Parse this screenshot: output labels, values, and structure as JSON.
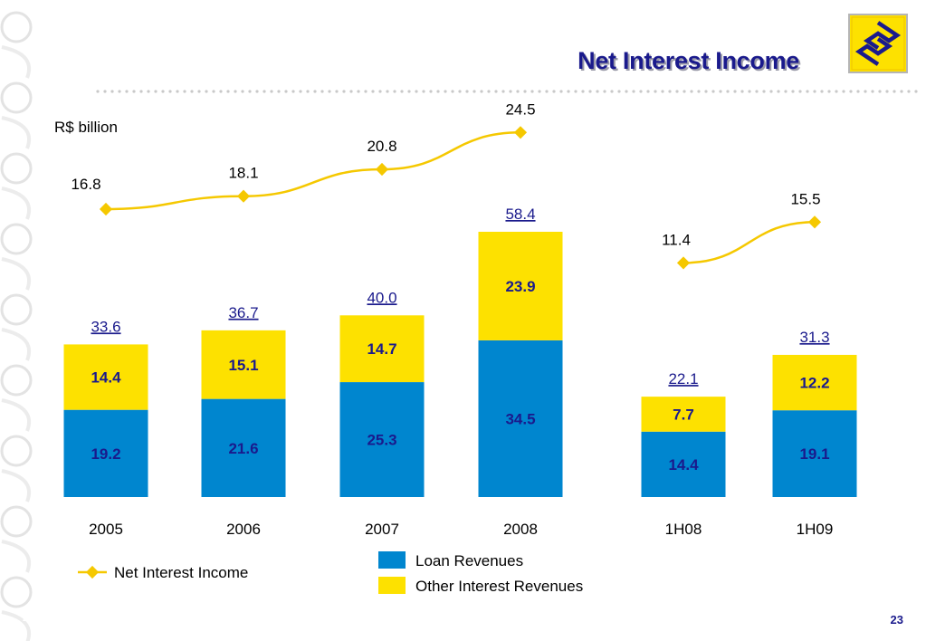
{
  "slide": {
    "title": "Net Interest Income",
    "unit_label": "R$ billion",
    "page_number": "23",
    "footer_number": "23"
  },
  "colors": {
    "loan": "#0086cf",
    "other": "#fde100",
    "line": "#f5c800",
    "title": "#1a1a8c"
  },
  "chart_data": {
    "type": "bar",
    "stacked": true,
    "categories": [
      "2005",
      "2006",
      "2007",
      "2008",
      "1H08",
      "1H09"
    ],
    "series": [
      {
        "name": "Loan Revenues",
        "values": [
          19.2,
          21.6,
          25.3,
          34.5,
          14.4,
          19.1
        ]
      },
      {
        "name": "Other Interest Revenues",
        "values": [
          14.4,
          15.1,
          14.7,
          23.9,
          7.7,
          12.2
        ]
      }
    ],
    "totals": [
      "33.6",
      "36.7",
      "40.0",
      "58.4",
      "22.1",
      "31.3"
    ],
    "line_series": {
      "name": "Net Interest Income",
      "values": [
        16.8,
        18.1,
        20.8,
        24.5,
        11.4,
        15.5
      ],
      "labels": [
        "16.8",
        "18.1",
        "20.8",
        "24.5",
        "11.4",
        "15.5"
      ],
      "segments": [
        [
          0,
          3
        ],
        [
          4,
          5
        ]
      ]
    },
    "legend": [
      "Net Interest Income",
      "Loan Revenues",
      "Other Interest Revenues"
    ]
  }
}
